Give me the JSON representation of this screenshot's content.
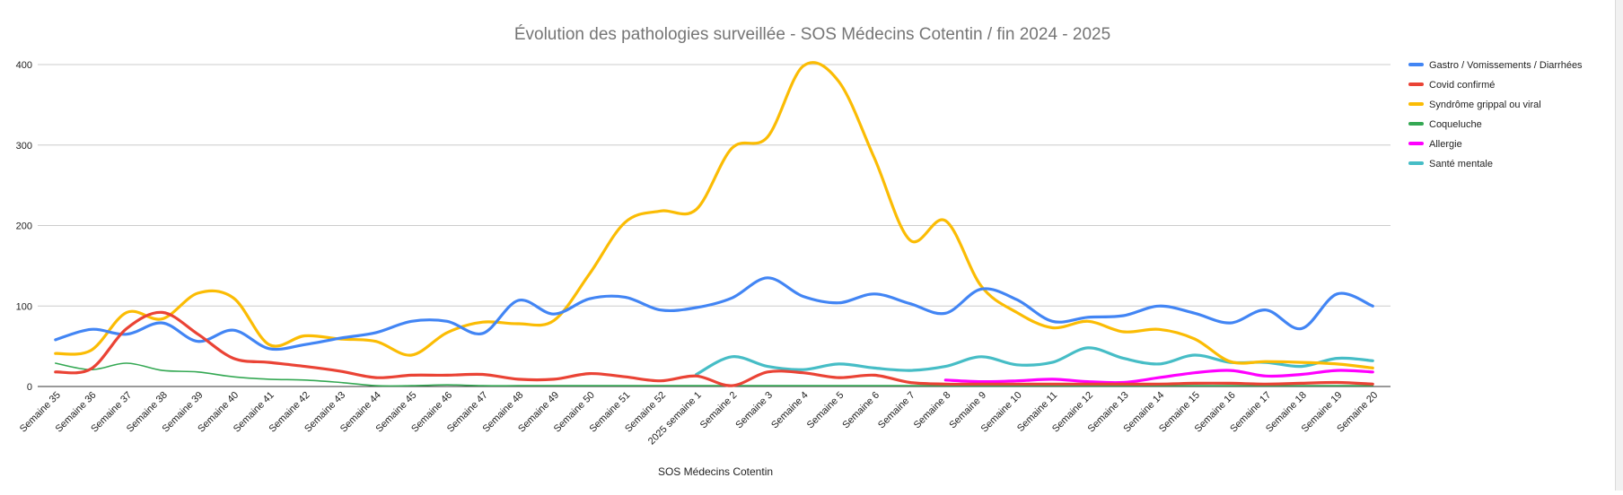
{
  "chart_data": {
    "type": "line",
    "title": "Évolution des pathologies surveillée - SOS Médecins Cotentin / fin 2024 - 2025",
    "xlabel": "SOS Médecins Cotentin",
    "ylabel": "",
    "ylim": [
      0,
      400
    ],
    "yticks": [
      0,
      100,
      200,
      300,
      400
    ],
    "grid": true,
    "legend_position": "right",
    "categories": [
      "Semaine 35",
      "Semaine 36",
      "Semaine 37",
      "Semaine 38",
      "Semaine 39",
      "Semaine 40",
      "Semaine 41",
      "Semaine 42",
      "Semaine 43",
      "Semaine 44",
      "Semaine 45",
      "Semaine 46",
      "Semaine 47",
      "Semaine 48",
      "Semaine 49",
      "Semaine 50",
      "Semaine 51",
      "Semaine 52",
      "2025 semaine 1",
      "Semaine 2",
      "Semaine 3",
      "Semaine 4",
      "Semaine 5",
      "Semaine 6",
      "Semaine 7",
      "Semaine 8",
      "Semaine 9",
      "Semaine 10",
      "Semaine 11",
      "Semaine 12",
      "Semaine 13",
      "Semaine 14",
      "Semaine 15",
      "Semaine 16",
      "Semaine 17",
      "Semaine 18",
      "Semaine 19",
      "Semaine 20"
    ],
    "series": [
      {
        "name": "Gastro / Vomissements / Diarrhées",
        "color": "#4285f4",
        "values": [
          58,
          71,
          65,
          79,
          56,
          70,
          47,
          52,
          60,
          67,
          81,
          81,
          66,
          107,
          90,
          109,
          111,
          95,
          98,
          110,
          135,
          112,
          104,
          115,
          103,
          91,
          121,
          108,
          81,
          86,
          88,
          100,
          91,
          79,
          95,
          72,
          115,
          100
        ]
      },
      {
        "name": "Covid confirmé",
        "color": "#ea4335",
        "values": [
          18,
          22,
          72,
          92,
          65,
          35,
          30,
          25,
          19,
          11,
          14,
          14,
          15,
          9,
          9,
          16,
          12,
          7,
          13,
          1,
          18,
          17,
          11,
          14,
          5,
          3,
          3,
          3,
          3,
          3,
          3,
          3,
          4,
          4,
          3,
          4,
          5,
          3
        ]
      },
      {
        "name": "Syndrôme grippal ou viral",
        "color": "#fbbc04",
        "values": [
          41,
          45,
          92,
          84,
          116,
          110,
          52,
          63,
          59,
          56,
          39,
          67,
          80,
          78,
          82,
          140,
          204,
          218,
          220,
          296,
          310,
          398,
          379,
          284,
          182,
          206,
          125,
          92,
          73,
          81,
          68,
          71,
          59,
          31,
          31,
          30,
          28,
          23
        ]
      },
      {
        "name": "Coqueluche",
        "color": "#34a853",
        "values": [
          29,
          21,
          29,
          20,
          18,
          12,
          9,
          8,
          5,
          1,
          1,
          2,
          1,
          1,
          1,
          1,
          1,
          1,
          1,
          1,
          1,
          1,
          1,
          1,
          1,
          1,
          1,
          1,
          1,
          1,
          1,
          1,
          1,
          1,
          1,
          1,
          1,
          1
        ]
      },
      {
        "name": "Allergie",
        "color": "#ff00ff",
        "values": [
          null,
          null,
          null,
          null,
          null,
          null,
          null,
          null,
          null,
          null,
          null,
          null,
          null,
          null,
          null,
          null,
          null,
          null,
          null,
          null,
          null,
          null,
          null,
          null,
          null,
          8,
          6,
          7,
          9,
          6,
          5,
          11,
          17,
          20,
          13,
          15,
          20,
          18
        ]
      },
      {
        "name": "Santé mentale",
        "color": "#46bdc6",
        "values": [
          null,
          null,
          null,
          null,
          null,
          null,
          null,
          null,
          null,
          null,
          null,
          null,
          null,
          null,
          null,
          null,
          null,
          null,
          15,
          37,
          25,
          21,
          28,
          23,
          20,
          25,
          37,
          27,
          30,
          48,
          35,
          28,
          39,
          30,
          30,
          25,
          35,
          32
        ]
      }
    ]
  }
}
